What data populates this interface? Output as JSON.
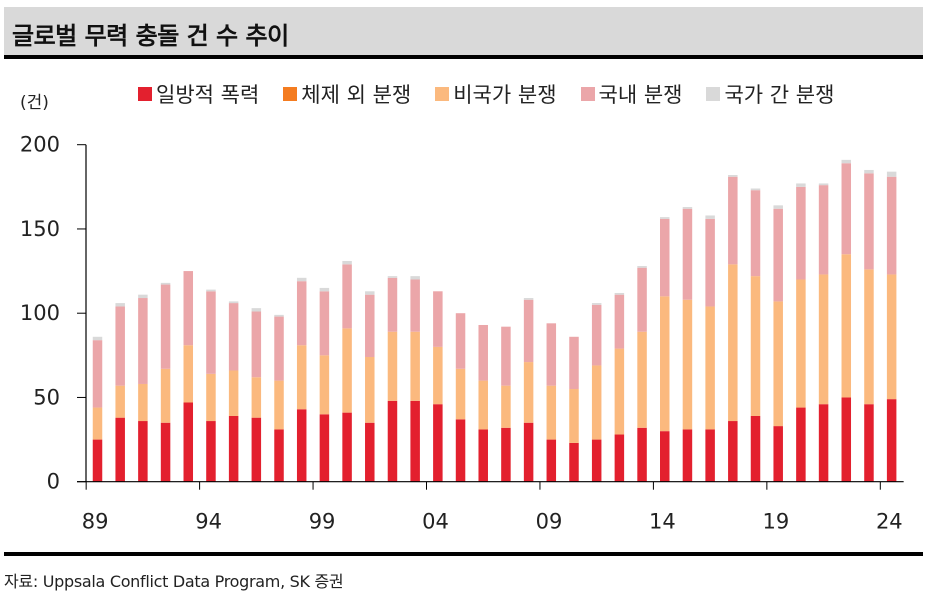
{
  "header": {
    "title": "글로벌 무력 충돌 건 수 추이"
  },
  "unit_label": "(건)",
  "source": "자료: Uppsala Conflict Data Program, SK 증권",
  "legend": [
    {
      "name": "일방적 폭력",
      "color": "#e3202e"
    },
    {
      "name": "체제 외 분쟁",
      "color": "#f47c20"
    },
    {
      "name": "비국가 분쟁",
      "color": "#fbb97e"
    },
    {
      "name": "국내 분쟁",
      "color": "#eba6a9"
    },
    {
      "name": "국가 간 분쟁",
      "color": "#d9d9d9"
    }
  ],
  "chart_data": {
    "type": "bar",
    "stacked": true,
    "title": "글로벌 무력 충돌 건 수 추이",
    "xlabel": "",
    "ylabel": "(건)",
    "ylim": [
      0,
      200
    ],
    "yticks": [
      0,
      50,
      100,
      150,
      200
    ],
    "grid": false,
    "legend_position": "top",
    "categories": [
      "1989",
      "1990",
      "1991",
      "1992",
      "1993",
      "1994",
      "1995",
      "1996",
      "1997",
      "1998",
      "1999",
      "2000",
      "2001",
      "2002",
      "2003",
      "2004",
      "2005",
      "2006",
      "2007",
      "2008",
      "2009",
      "2010",
      "2011",
      "2012",
      "2013",
      "2014",
      "2015",
      "2016",
      "2017",
      "2018",
      "2019",
      "2020",
      "2021",
      "2022",
      "2023",
      "2024"
    ],
    "xtick_labels": [
      {
        "index": 0,
        "label": "89"
      },
      {
        "index": 5,
        "label": "94"
      },
      {
        "index": 10,
        "label": "99"
      },
      {
        "index": 15,
        "label": "04"
      },
      {
        "index": 20,
        "label": "09"
      },
      {
        "index": 25,
        "label": "14"
      },
      {
        "index": 30,
        "label": "19"
      },
      {
        "index": 35,
        "label": "24"
      }
    ],
    "series": [
      {
        "name": "일방적 폭력",
        "color": "#e3202e",
        "values": [
          25,
          38,
          36,
          35,
          47,
          36,
          39,
          38,
          31,
          43,
          40,
          41,
          35,
          48,
          48,
          46,
          37,
          31,
          32,
          35,
          25,
          23,
          25,
          28,
          32,
          30,
          31,
          31,
          36,
          39,
          33,
          44,
          46,
          50,
          46,
          49
        ]
      },
      {
        "name": "체제 외 분쟁",
        "color": "#f47c20",
        "values": [
          0,
          0,
          0,
          0,
          0,
          0,
          0,
          0,
          0,
          0,
          0,
          0,
          0,
          0,
          0,
          0,
          0,
          0,
          0,
          0,
          0,
          0,
          0,
          0,
          0,
          0,
          0,
          0,
          0,
          0,
          0,
          0,
          0,
          0,
          0,
          0
        ]
      },
      {
        "name": "비국가 분쟁",
        "color": "#fbb97e",
        "values": [
          19,
          19,
          22,
          32,
          34,
          28,
          27,
          24,
          29,
          38,
          35,
          50,
          39,
          41,
          41,
          34,
          30,
          29,
          25,
          36,
          32,
          32,
          44,
          51,
          57,
          80,
          77,
          73,
          93,
          83,
          74,
          76,
          77,
          85,
          80,
          74
        ]
      },
      {
        "name": "국내 분쟁",
        "color": "#eba6a9",
        "values": [
          40,
          47,
          51,
          50,
          44,
          49,
          40,
          39,
          38,
          38,
          38,
          38,
          37,
          32,
          31,
          33,
          33,
          33,
          35,
          37,
          37,
          31,
          36,
          32,
          38,
          46,
          54,
          52,
          52,
          51,
          55,
          55,
          53,
          54,
          57,
          58
        ]
      },
      {
        "name": "국가 간 분쟁",
        "color": "#d9d9d9",
        "values": [
          2,
          2,
          2,
          1,
          0,
          1,
          1,
          2,
          1,
          2,
          2,
          2,
          2,
          1,
          2,
          0,
          0,
          0,
          0,
          1,
          0,
          0,
          1,
          1,
          1,
          1,
          1,
          2,
          1,
          1,
          2,
          2,
          1,
          2,
          2,
          3
        ]
      }
    ]
  }
}
